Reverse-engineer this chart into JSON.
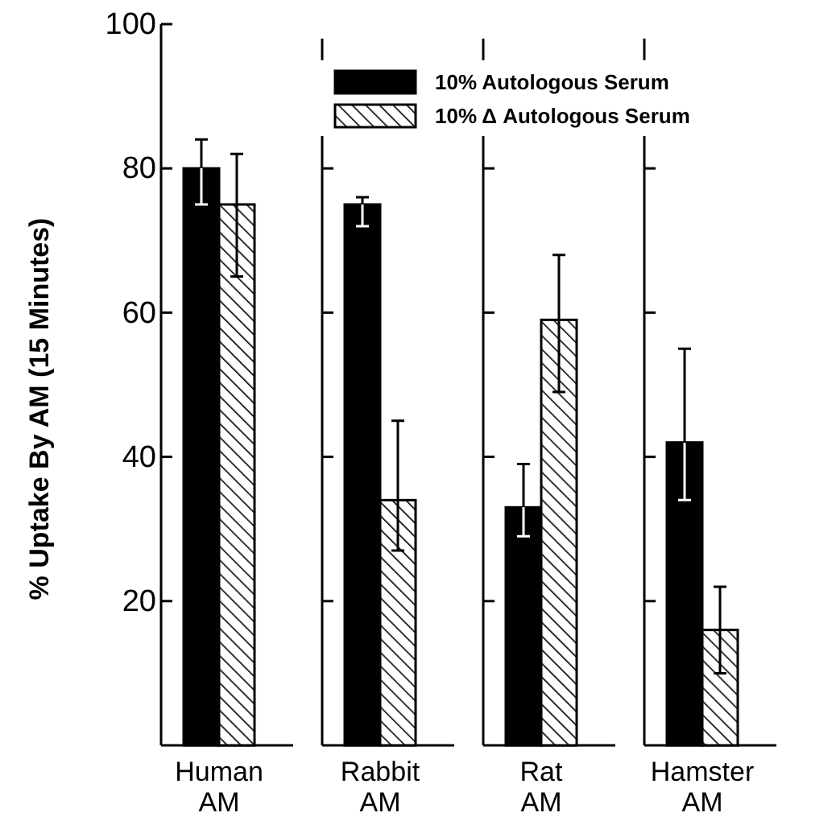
{
  "chart_data": {
    "type": "bar",
    "ylabel": "% Uptake By AM (15 Minutes)",
    "categories": [
      "Human AM",
      "Rabbit AM",
      "Rat AM",
      "Hamster AM"
    ],
    "series": [
      {
        "name": "10% Autologous Serum",
        "color": "#000000",
        "values": [
          80,
          75,
          33,
          42
        ],
        "errors": [
          [
            75,
            84
          ],
          [
            72,
            76
          ],
          [
            29,
            39
          ],
          [
            34,
            55
          ]
        ]
      },
      {
        "name": "10% Δ Autologous Serum",
        "color": "#000000",
        "values": [
          75,
          34,
          59,
          16
        ],
        "errors": [
          [
            65,
            82
          ],
          [
            27,
            45
          ],
          [
            49,
            68
          ],
          [
            10,
            22
          ]
        ]
      }
    ],
    "ylim": [
      0,
      100
    ],
    "yticks": [
      20,
      40,
      60,
      80,
      100
    ],
    "legend": "top right",
    "grid": false
  }
}
